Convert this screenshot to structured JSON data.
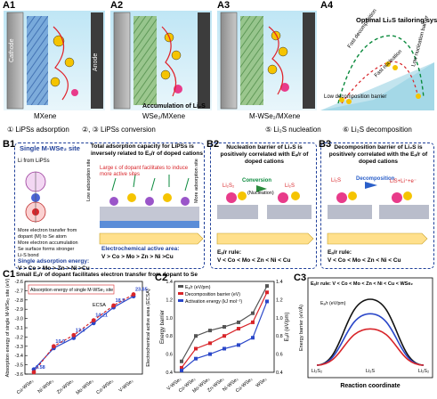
{
  "panels": {
    "A1": "A1",
    "A2": "A2",
    "A3": "A3",
    "A4": "A4",
    "B1": "B1",
    "B2": "B2",
    "B3": "B3",
    "C1": "C1",
    "C2": "C2",
    "C3": "C3"
  },
  "row_a": {
    "cathode": "Cathode",
    "anode": "Anode",
    "accumulation": "Accumulation of Li₂S",
    "a1_caption": "MXene",
    "a2_caption": "WSe₂/MXene",
    "a3_caption": "M-WSe₂/MXene",
    "a4_title": "Optimal Li₂S tailoring system",
    "fast_decomposition": "Fast decomposition",
    "fast_nucleation": "Fast nucleation",
    "low_nucleation_barrier": "Low nucleation barrier",
    "low_decomposition_barrier": "Low decomposition barrier",
    "steps": [
      "① LiPSs adsorption",
      "②, ③ LiPSs conversion",
      "④ ",
      "⑤ Li₂S nucleation",
      "⑥ Li₂S decomposition"
    ]
  },
  "row_b": {
    "b1_title": "Single M-WSe₂ site",
    "b1_sub": "Total adsorption capacity for LiPSs is inversely related to Eₐ/r of doped cations",
    "li_from_lips": "Li from LiPSs",
    "more_transfer": "More electron transfer from dopant (M) to Se atom",
    "more_accumulation": "More electron accumulation",
    "li_s_bond": "Li-S bond",
    "stronger": "Se surface forms stronger",
    "single_ads_energy": "Single adsorption energy:",
    "single_order": "V > Co > Mo > Zn > Ni >Cu",
    "dopant_sites": "Large ε of dopant facilitates to induce more active sites",
    "low_ads_site": "Low adsorption site",
    "more_ads_site": "More adsorption site",
    "ecsa": "Electrochemical active area:",
    "ecsa_order": "V > Co > Mo > Zn > Ni >Cu",
    "b2_title": "Nucleation barrier of Li₂S is positively correlated with Eₐ/r of doped cations",
    "conversion": "Conversion",
    "nucleation": "(Nucleation)",
    "li2s": "Li₂S",
    "li2s2": "Li₂S₂",
    "ea_rule_b2": "Eₐ/r rule:",
    "b2_order": "V < Co < Mo < Zn < Ni < Cu",
    "b3_title": "Decomposition barrier of Li₂S is positively correlated with the Eₐ/r of doped cations",
    "decomposition": "Decomposition",
    "li2s_eq": "LiS+Li⁺+e⁻",
    "ea_rule_b3": "Eₐ/r rule:",
    "b3_order": "V < Co < Mo < Zn < Ni < Cu"
  },
  "chart_data": [
    {
      "type": "line",
      "title": "Small Eₐ/r of dopant facilitates electron transfer from dopant to Se",
      "inset_label": "Absorption energy of single M-WSe₂ site",
      "ecsa_tag": "ECSA",
      "ylabel": "Absorption energy of single M-WSe₂ site (eV)",
      "y2label": "Electrochemical active area (ECSA)",
      "categories": [
        "Cu-WSe₂",
        "Ni-WSe₂",
        "Zn-WSe₂",
        "Mo-WSe₂",
        "Co-WSe₂",
        "V-WSe₂"
      ],
      "ylim": [
        -3.6,
        -2.6
      ],
      "y_ticks": [
        "-2.6",
        "-2.7",
        "-2.8",
        "-2.9",
        "-3.0",
        "-3.1",
        "-3.2",
        "-3.3",
        "-3.4",
        "-3.5",
        "-3.6"
      ],
      "series": [
        {
          "values": [
            -3.55,
            -3.32,
            -3.21,
            -3.05,
            -2.88,
            -2.76
          ],
          "color": "#2a47c9"
        },
        {
          "values": [
            -3.58,
            -3.3,
            -3.18,
            -3.02,
            -2.86,
            -2.74
          ],
          "color": "#d8252a"
        }
      ],
      "point_labels": [
        "0.58",
        "10.9",
        "13.9",
        "14.21",
        "18.5",
        "23.65"
      ]
    },
    {
      "type": "line",
      "ylabel": "Energy barrier",
      "y2label": "Eₐ/r (eV/pm)",
      "categories": [
        "V-WSe₂",
        "Co-WSe₂",
        "Mo-WSe₂",
        "Zn-WSe₂",
        "Ni-WSe₂",
        "Cu-WSe₂",
        "WSe₂"
      ],
      "ylim": [
        0.4,
        1.4
      ],
      "y_ticks": [
        "1.4",
        "1.2",
        "1.0",
        "0.8",
        "0.6",
        "0.4"
      ],
      "y2_ticks": [
        "1.4",
        "1.2",
        "1.0",
        "0.8",
        "0.6",
        "0.4"
      ],
      "series": [
        {
          "name": "Eₐ/r (eV/pm)",
          "values": [
            0.52,
            0.8,
            0.86,
            0.9,
            0.95,
            1.05,
            1.35
          ],
          "color": "#555555"
        },
        {
          "name": "Decomposition barrier (eV)",
          "values": [
            0.45,
            0.66,
            0.72,
            0.8,
            0.88,
            0.95,
            1.28
          ],
          "color": "#d8252a"
        },
        {
          "name": "Activation energy (kJ mol⁻¹)",
          "values": [
            0.42,
            0.55,
            0.6,
            0.66,
            0.7,
            0.78,
            1.18
          ],
          "color": "#2a47c9"
        }
      ],
      "legend": "top-left"
    },
    {
      "type": "line",
      "title": "Eₐ/r rule:  V < Co < Mo < Zn < Ni < Cu < WSe₂",
      "xlabel": "Reaction coordinate",
      "ylabel": "Energy barrier (eV/Å)",
      "x_labels": [
        "Li₂S₂",
        "Li₂S",
        "Li₂S₂"
      ],
      "series": [
        {
          "values": [
            0,
            1.0,
            0
          ],
          "color": "#111111"
        },
        {
          "values": [
            0,
            0.78,
            0
          ],
          "color": "#2a47c9"
        },
        {
          "values": [
            0,
            0.55,
            0
          ],
          "color": "#d8252a"
        }
      ],
      "inner_label": "Eₐ/r (eV/pm)"
    }
  ]
}
